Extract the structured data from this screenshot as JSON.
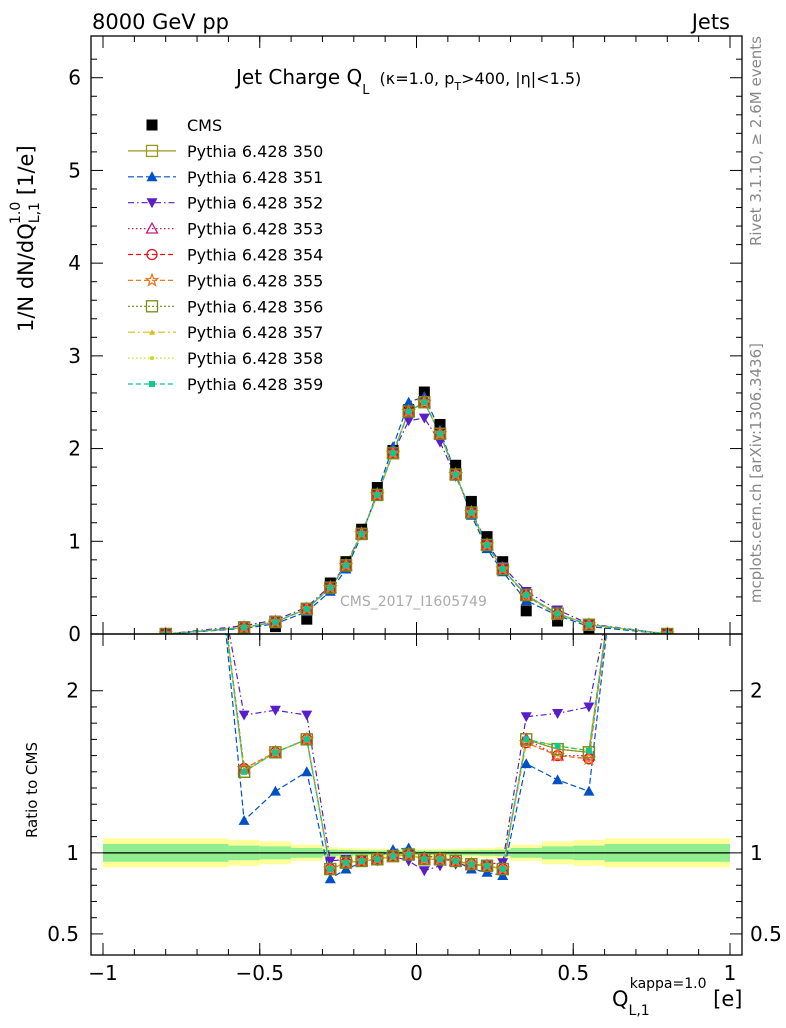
{
  "header": {
    "left": "8000 GeV pp",
    "right": "Jets"
  },
  "side_text": {
    "rivet": "Rivet 3.1.10, ≥ 2.6M events",
    "mcplots": "mcplots.cern.ch [arXiv:1306.3436]"
  },
  "colors": {
    "band_inner": "#90ee90",
    "band_outer": "#ffff99"
  },
  "chart_data": [
    {
      "type": "line",
      "title": "Jet Charge Q_L (κ=1.0, p_T>400, |η|<1.5)",
      "title_parts": {
        "main": "Jet Charge Q",
        "main_sub": "L",
        "paren_a": "(κ=1.0, p",
        "paren_sub": "T",
        "paren_b": ">400, |η|<1.5)"
      },
      "ylabel": "1/N dN/dQ_{L,1}^{1.0} [1/e]",
      "ylabel_parts": {
        "a": "1/N dN/dQ",
        "sub": "L,1",
        "sup": "1.0",
        "b": " [1/e]"
      },
      "xlim": [
        -1.0,
        1.0
      ],
      "ylim": [
        0,
        6.45
      ],
      "yticks": [
        0,
        1,
        2,
        3,
        4,
        5,
        6
      ],
      "watermark": "CMS_2017_I1605749",
      "legend_position": "top-left",
      "x": [
        -0.8,
        -0.55,
        -0.45,
        -0.35,
        -0.275,
        -0.225,
        -0.175,
        -0.125,
        -0.075,
        -0.025,
        0.025,
        0.075,
        0.125,
        0.175,
        0.225,
        0.275,
        0.35,
        0.45,
        0.55,
        0.8
      ],
      "data": {
        "name": "CMS",
        "y": [
          0.0,
          0.05,
          0.08,
          0.16,
          0.55,
          0.78,
          1.13,
          1.58,
          1.98,
          2.42,
          2.61,
          2.26,
          1.82,
          1.43,
          1.05,
          0.78,
          0.25,
          0.14,
          0.06,
          0.0
        ]
      },
      "series": [
        {
          "name": "Pythia 6.428 350",
          "color": "#9a9a1e",
          "dash": "",
          "marker": "open-square",
          "y": [
            0.0,
            0.07,
            0.13,
            0.27,
            0.5,
            0.74,
            1.08,
            1.5,
            1.95,
            2.4,
            2.5,
            2.16,
            1.72,
            1.31,
            0.96,
            0.7,
            0.42,
            0.22,
            0.1,
            0.0
          ]
        },
        {
          "name": "Pythia 6.428 351",
          "color": "#0050c8",
          "dash": "6,3",
          "marker": "triangle",
          "y": [
            0.0,
            0.06,
            0.11,
            0.24,
            0.46,
            0.7,
            1.06,
            1.53,
            2.02,
            2.5,
            2.56,
            2.2,
            1.73,
            1.28,
            0.92,
            0.67,
            0.36,
            0.2,
            0.08,
            0.0
          ]
        },
        {
          "name": "Pythia 6.428 352",
          "color": "#5a1ec8",
          "dash": "6,3,1.5,3",
          "marker": "triangle-down",
          "y": [
            0.0,
            0.09,
            0.15,
            0.29,
            0.52,
            0.75,
            1.09,
            1.5,
            1.95,
            2.3,
            2.33,
            2.07,
            1.7,
            1.32,
            0.98,
            0.73,
            0.46,
            0.26,
            0.11,
            0.0
          ]
        },
        {
          "name": "Pythia 6.428 353",
          "color": "#c81e78",
          "dash": "1.5,2.5",
          "marker": "open-triangle",
          "y": [
            0.0,
            0.07,
            0.13,
            0.27,
            0.5,
            0.74,
            1.08,
            1.5,
            1.95,
            2.4,
            2.5,
            2.16,
            1.72,
            1.31,
            0.96,
            0.7,
            0.42,
            0.22,
            0.1,
            0.0
          ]
        },
        {
          "name": "Pythia 6.428 354",
          "color": "#e6141e",
          "dash": "5,3",
          "marker": "open-circle",
          "y": [
            0.0,
            0.07,
            0.13,
            0.27,
            0.5,
            0.74,
            1.08,
            1.5,
            1.95,
            2.4,
            2.5,
            2.16,
            1.72,
            1.31,
            0.96,
            0.7,
            0.41,
            0.21,
            0.1,
            0.0
          ]
        },
        {
          "name": "Pythia 6.428 355",
          "color": "#f0781e",
          "dash": "5,3",
          "marker": "open-star",
          "y": [
            0.0,
            0.07,
            0.13,
            0.27,
            0.5,
            0.74,
            1.08,
            1.5,
            1.95,
            2.4,
            2.5,
            2.16,
            1.72,
            1.31,
            0.96,
            0.7,
            0.41,
            0.21,
            0.1,
            0.0
          ]
        },
        {
          "name": "Pythia 6.428 356",
          "color": "#788c14",
          "dash": "2,2",
          "marker": "open-square",
          "y": [
            0.0,
            0.07,
            0.13,
            0.27,
            0.5,
            0.74,
            1.08,
            1.5,
            1.95,
            2.4,
            2.5,
            2.16,
            1.72,
            1.31,
            0.96,
            0.7,
            0.42,
            0.22,
            0.1,
            0.0
          ]
        },
        {
          "name": "Pythia 6.428 357",
          "color": "#dcbe14",
          "dash": "7,3,2,3",
          "marker": "small-tri",
          "y": [
            0.0,
            0.07,
            0.13,
            0.27,
            0.5,
            0.74,
            1.08,
            1.5,
            1.95,
            2.4,
            2.5,
            2.16,
            1.72,
            1.31,
            0.96,
            0.7,
            0.42,
            0.22,
            0.1,
            0.0
          ]
        },
        {
          "name": "Pythia 6.428 358",
          "color": "#c8dc14",
          "dash": "1.5,2.5",
          "marker": "small-dot",
          "y": [
            0.0,
            0.07,
            0.13,
            0.27,
            0.5,
            0.74,
            1.08,
            1.5,
            1.95,
            2.4,
            2.5,
            2.16,
            1.72,
            1.31,
            0.96,
            0.7,
            0.42,
            0.22,
            0.1,
            0.0
          ]
        },
        {
          "name": "Pythia 6.428 359",
          "color": "#14c88c",
          "dash": "5,3",
          "marker": "small-square",
          "y": [
            0.0,
            0.07,
            0.13,
            0.27,
            0.5,
            0.74,
            1.08,
            1.5,
            1.95,
            2.4,
            2.5,
            2.16,
            1.72,
            1.31,
            0.96,
            0.7,
            0.42,
            0.22,
            0.1,
            0.0
          ]
        }
      ]
    },
    {
      "type": "line",
      "ylabel": "Ratio to CMS",
      "xlabel": "Q_{L,1}^{kappa=1.0} [e]",
      "xlabel_parts": {
        "a": "Q",
        "sub": "L,1",
        "sup": "kappa=1.0",
        "b": " [e]"
      },
      "xlim": [
        -1.0,
        1.0
      ],
      "ylim": [
        0.37,
        2.35
      ],
      "yticks": [
        0.5,
        1,
        2
      ],
      "ytick_labels": [
        "0.5",
        "1",
        "2"
      ],
      "xticks": [
        -1,
        -0.5,
        0,
        0.5,
        1
      ],
      "xtick_labels": [
        "−1",
        "−0.5",
        "0",
        "0.5",
        "1"
      ],
      "x": [
        -0.55,
        -0.45,
        -0.35,
        -0.275,
        -0.225,
        -0.175,
        -0.125,
        -0.075,
        -0.025,
        0.025,
        0.075,
        0.125,
        0.175,
        0.225,
        0.275,
        0.35,
        0.45,
        0.55
      ],
      "bands": {
        "edges": [
          -1.0,
          -0.6,
          -0.5,
          -0.4,
          -0.3,
          -0.25,
          -0.2,
          -0.15,
          -0.1,
          -0.05,
          0.0,
          0.05,
          0.1,
          0.15,
          0.2,
          0.25,
          0.3,
          0.4,
          0.5,
          0.6,
          1.0
        ],
        "inner": [
          0.055,
          0.045,
          0.04,
          0.03,
          0.02,
          0.018,
          0.016,
          0.015,
          0.014,
          0.014,
          0.014,
          0.014,
          0.015,
          0.016,
          0.018,
          0.02,
          0.03,
          0.04,
          0.045,
          0.055
        ],
        "outer": [
          0.09,
          0.08,
          0.07,
          0.05,
          0.035,
          0.03,
          0.028,
          0.026,
          0.025,
          0.024,
          0.024,
          0.025,
          0.026,
          0.028,
          0.03,
          0.035,
          0.05,
          0.07,
          0.08,
          0.09
        ]
      },
      "series": [
        {
          "name": "Pythia 6.428 350",
          "y": [
            1.5,
            1.62,
            1.7,
            0.9,
            0.94,
            0.95,
            0.96,
            0.98,
            0.99,
            0.96,
            0.96,
            0.95,
            0.93,
            0.92,
            0.9,
            1.7,
            1.64,
            1.62
          ]
        },
        {
          "name": "Pythia 6.428 351",
          "y": [
            1.2,
            1.38,
            1.5,
            0.84,
            0.9,
            0.94,
            0.97,
            1.02,
            1.03,
            0.98,
            0.97,
            0.95,
            0.9,
            0.88,
            0.86,
            1.55,
            1.45,
            1.38
          ]
        },
        {
          "name": "Pythia 6.428 352",
          "y": [
            1.85,
            1.88,
            1.85,
            0.95,
            0.96,
            0.96,
            0.95,
            0.98,
            0.95,
            0.89,
            0.92,
            0.93,
            0.92,
            0.93,
            0.94,
            1.84,
            1.86,
            1.9
          ]
        },
        {
          "name": "Pythia 6.428 353",
          "y": [
            1.52,
            1.62,
            1.7,
            0.9,
            0.94,
            0.95,
            0.96,
            0.98,
            0.99,
            0.96,
            0.96,
            0.95,
            0.93,
            0.92,
            0.9,
            1.7,
            1.6,
            1.6
          ]
        },
        {
          "name": "Pythia 6.428 354",
          "y": [
            1.52,
            1.62,
            1.7,
            0.9,
            0.94,
            0.95,
            0.96,
            0.98,
            0.99,
            0.96,
            0.96,
            0.95,
            0.93,
            0.92,
            0.9,
            1.68,
            1.6,
            1.58
          ]
        },
        {
          "name": "Pythia 6.428 355",
          "y": [
            1.52,
            1.62,
            1.7,
            0.9,
            0.94,
            0.95,
            0.96,
            0.98,
            0.99,
            0.96,
            0.96,
            0.95,
            0.93,
            0.92,
            0.9,
            1.68,
            1.6,
            1.58
          ]
        },
        {
          "name": "Pythia 6.428 356",
          "y": [
            1.5,
            1.62,
            1.7,
            0.9,
            0.94,
            0.95,
            0.96,
            0.98,
            0.99,
            0.96,
            0.96,
            0.95,
            0.93,
            0.92,
            0.9,
            1.7,
            1.64,
            1.62
          ]
        },
        {
          "name": "Pythia 6.428 357",
          "y": [
            1.5,
            1.62,
            1.7,
            0.9,
            0.94,
            0.95,
            0.96,
            0.98,
            0.99,
            0.96,
            0.96,
            0.95,
            0.93,
            0.92,
            0.9,
            1.7,
            1.66,
            1.63
          ]
        },
        {
          "name": "Pythia 6.428 358",
          "y": [
            1.5,
            1.62,
            1.7,
            0.9,
            0.94,
            0.95,
            0.96,
            0.98,
            0.99,
            0.96,
            0.96,
            0.95,
            0.93,
            0.92,
            0.9,
            1.7,
            1.66,
            1.63
          ]
        },
        {
          "name": "Pythia 6.428 359",
          "y": [
            1.5,
            1.62,
            1.7,
            0.9,
            0.94,
            0.95,
            0.96,
            0.98,
            0.99,
            0.96,
            0.96,
            0.95,
            0.93,
            0.92,
            0.9,
            1.7,
            1.66,
            1.63
          ]
        }
      ]
    }
  ]
}
